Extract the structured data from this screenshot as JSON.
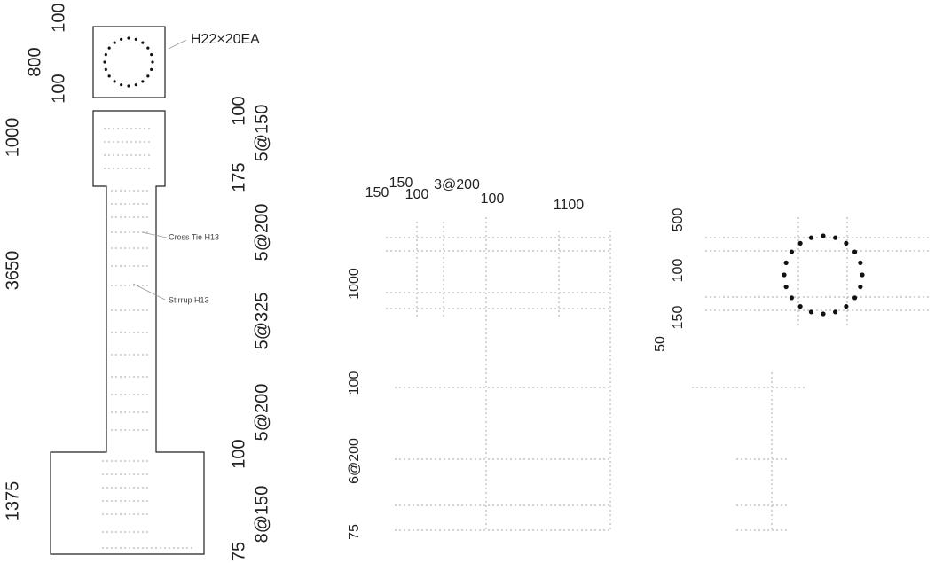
{
  "left_elevation": {
    "section_dims": [
      "100",
      "800",
      "100"
    ],
    "main_bar": "H22×20EA",
    "height_dims": [
      "1000",
      "3650",
      "1375"
    ],
    "spacing_dims": [
      "100",
      "5@150",
      "175",
      "5@200",
      "5@325",
      "5@200",
      "100",
      "8@150",
      "75"
    ],
    "callouts": [
      "Cross Tie H13",
      "Stirrup H13"
    ]
  },
  "middle_detail": {
    "horizontal_dims": [
      "150",
      "150",
      "100",
      "3@200",
      "100",
      "1100"
    ],
    "vertical_dims": [
      "1000",
      "100",
      "6@200",
      "75"
    ]
  },
  "right_section": {
    "vertical_dims": [
      "500",
      "100",
      "150",
      "50"
    ]
  }
}
